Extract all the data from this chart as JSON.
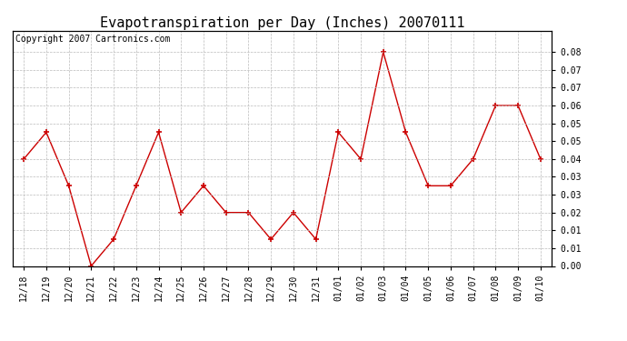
{
  "title": "Evapotranspiration per Day (Inches) 20070111",
  "copyright_text": "Copyright 2007 Cartronics.com",
  "x_labels": [
    "12/18",
    "12/19",
    "12/20",
    "12/21",
    "12/22",
    "12/23",
    "12/24",
    "12/25",
    "12/26",
    "12/27",
    "12/28",
    "12/29",
    "12/30",
    "12/31",
    "01/01",
    "01/02",
    "01/03",
    "01/04",
    "01/05",
    "01/06",
    "01/07",
    "01/08",
    "01/09",
    "01/10"
  ],
  "y_values": [
    0.04,
    0.05,
    0.03,
    0.0,
    0.01,
    0.03,
    0.05,
    0.02,
    0.03,
    0.02,
    0.02,
    0.01,
    0.02,
    0.01,
    0.05,
    0.04,
    0.08,
    0.05,
    0.03,
    0.03,
    0.04,
    0.06,
    0.06,
    0.04
  ],
  "line_color": "#cc0000",
  "marker": "+",
  "marker_size": 5,
  "marker_edge_width": 1.2,
  "line_width": 1.0,
  "ylim": [
    0.0,
    0.088
  ],
  "ytick_positions": [
    0.0,
    0.00667,
    0.01333,
    0.02,
    0.02667,
    0.03333,
    0.04,
    0.04667,
    0.05333,
    0.06,
    0.06667,
    0.07333,
    0.08
  ],
  "ytick_labels": [
    "0.00",
    "0.01",
    "0.01",
    "0.02",
    "0.03",
    "0.03",
    "0.04",
    "0.05",
    "0.05",
    "0.06",
    "0.07",
    "0.07",
    "0.08"
  ],
  "background_color": "#ffffff",
  "plot_bg_color": "#ffffff",
  "grid_color": "#bbbbbb",
  "title_fontsize": 11,
  "copyright_fontsize": 7,
  "tick_fontsize": 7,
  "fig_width": 6.9,
  "fig_height": 3.75,
  "dpi": 100
}
